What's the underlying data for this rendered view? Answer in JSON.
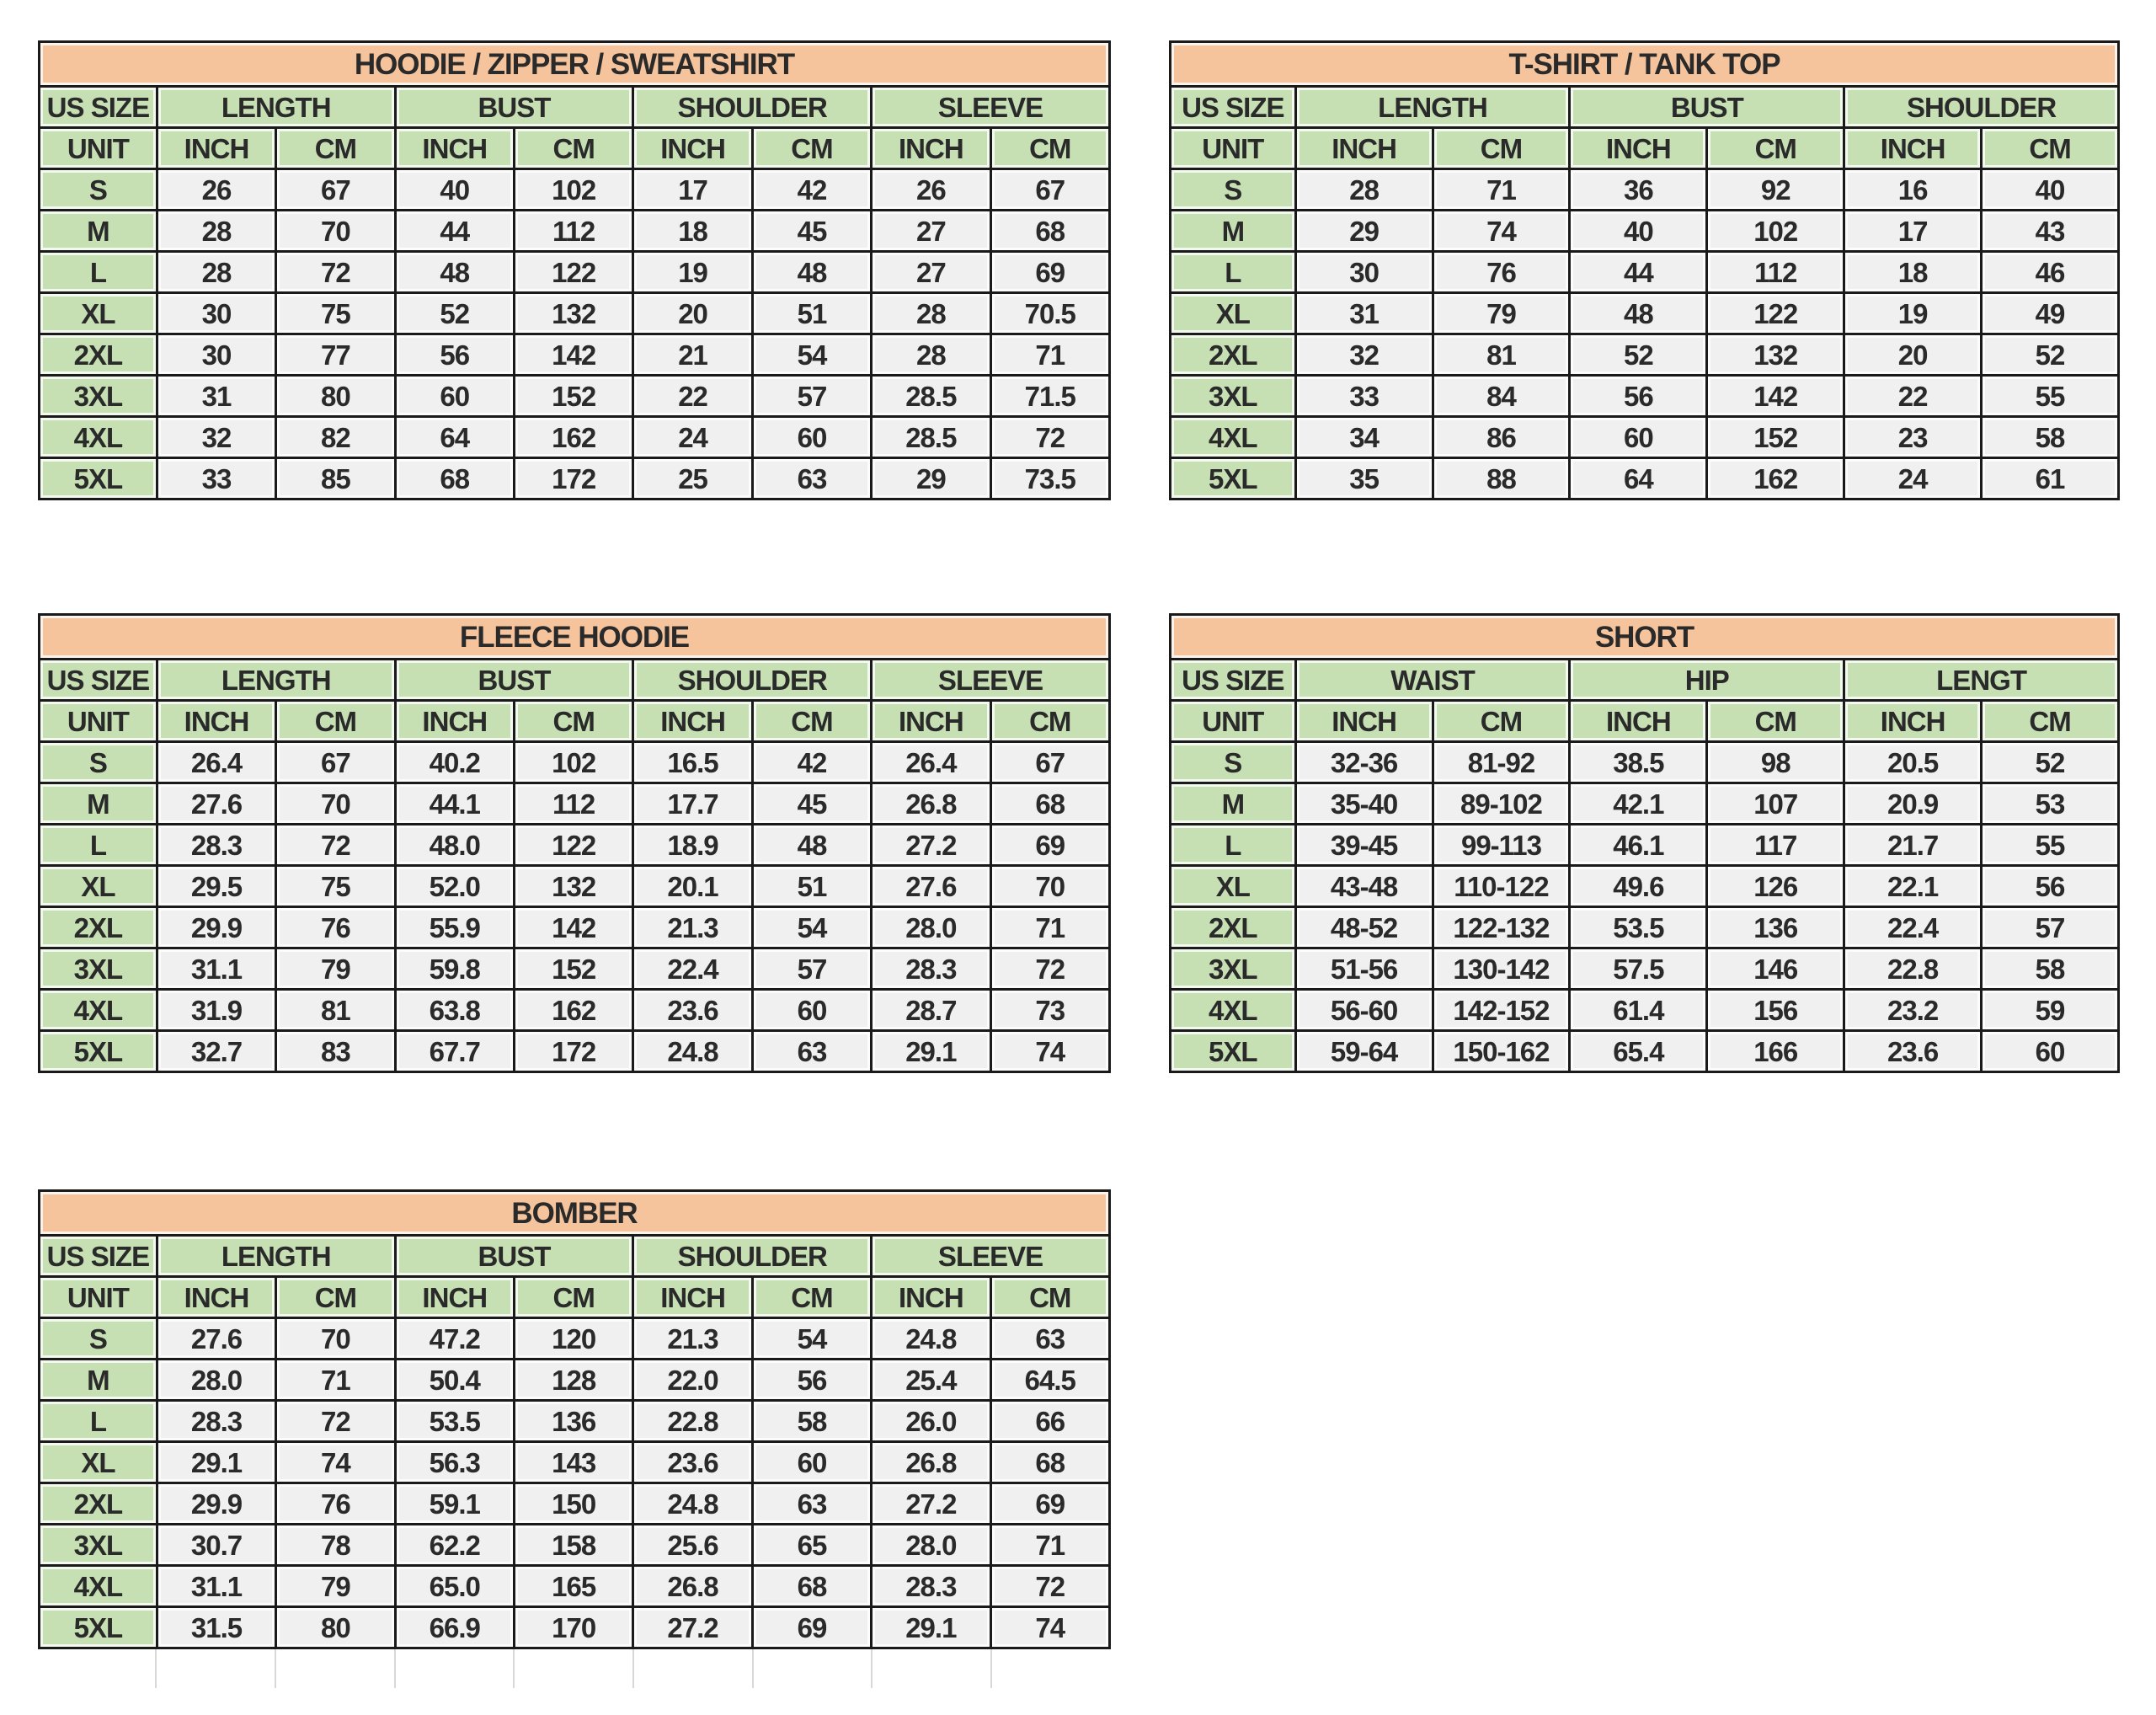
{
  "colors": {
    "title_bg": "#F5C49C",
    "header_bg": "#C6E0B4",
    "value_bg": "#F0F0F0",
    "border": "#1A1A1A",
    "text": "#2A2A2A",
    "ghost_line": "#D8D8D8"
  },
  "shared": {
    "us_size_label": "US SIZE",
    "unit_label": "UNIT",
    "inch_label": "INCH",
    "cm_label": "CM"
  },
  "tables": [
    {
      "id": "hoodie-zipper-sweatshirt",
      "title": "HOODIE / ZIPPER / SWEATSHIRT",
      "measures": [
        "LENGTH",
        "BUST",
        "SHOULDER",
        "SLEEVE"
      ],
      "rows": [
        {
          "size": "S",
          "values": [
            "26",
            "67",
            "40",
            "102",
            "17",
            "42",
            "26",
            "67"
          ]
        },
        {
          "size": "M",
          "values": [
            "28",
            "70",
            "44",
            "112",
            "18",
            "45",
            "27",
            "68"
          ]
        },
        {
          "size": "L",
          "values": [
            "28",
            "72",
            "48",
            "122",
            "19",
            "48",
            "27",
            "69"
          ]
        },
        {
          "size": "XL",
          "values": [
            "30",
            "75",
            "52",
            "132",
            "20",
            "51",
            "28",
            "70.5"
          ]
        },
        {
          "size": "2XL",
          "values": [
            "30",
            "77",
            "56",
            "142",
            "21",
            "54",
            "28",
            "71"
          ]
        },
        {
          "size": "3XL",
          "values": [
            "31",
            "80",
            "60",
            "152",
            "22",
            "57",
            "28.5",
            "71.5"
          ]
        },
        {
          "size": "4XL",
          "values": [
            "32",
            "82",
            "64",
            "162",
            "24",
            "60",
            "28.5",
            "72"
          ]
        },
        {
          "size": "5XL",
          "values": [
            "33",
            "85",
            "68",
            "172",
            "25",
            "63",
            "29",
            "73.5"
          ]
        }
      ]
    },
    {
      "id": "t-shirt-tank-top",
      "title": "T-SHIRT / TANK TOP",
      "measures": [
        "LENGTH",
        "BUST",
        "SHOULDER"
      ],
      "rows": [
        {
          "size": "S",
          "values": [
            "28",
            "71",
            "36",
            "92",
            "16",
            "40"
          ]
        },
        {
          "size": "M",
          "values": [
            "29",
            "74",
            "40",
            "102",
            "17",
            "43"
          ]
        },
        {
          "size": "L",
          "values": [
            "30",
            "76",
            "44",
            "112",
            "18",
            "46"
          ]
        },
        {
          "size": "XL",
          "values": [
            "31",
            "79",
            "48",
            "122",
            "19",
            "49"
          ]
        },
        {
          "size": "2XL",
          "values": [
            "32",
            "81",
            "52",
            "132",
            "20",
            "52"
          ]
        },
        {
          "size": "3XL",
          "values": [
            "33",
            "84",
            "56",
            "142",
            "22",
            "55"
          ]
        },
        {
          "size": "4XL",
          "values": [
            "34",
            "86",
            "60",
            "152",
            "23",
            "58"
          ]
        },
        {
          "size": "5XL",
          "values": [
            "35",
            "88",
            "64",
            "162",
            "24",
            "61"
          ]
        }
      ]
    },
    {
      "id": "fleece-hoodie",
      "title": "FLEECE HOODIE",
      "measures": [
        "LENGTH",
        "BUST",
        "SHOULDER",
        "SLEEVE"
      ],
      "rows": [
        {
          "size": "S",
          "values": [
            "26.4",
            "67",
            "40.2",
            "102",
            "16.5",
            "42",
            "26.4",
            "67"
          ]
        },
        {
          "size": "M",
          "values": [
            "27.6",
            "70",
            "44.1",
            "112",
            "17.7",
            "45",
            "26.8",
            "68"
          ]
        },
        {
          "size": "L",
          "values": [
            "28.3",
            "72",
            "48.0",
            "122",
            "18.9",
            "48",
            "27.2",
            "69"
          ]
        },
        {
          "size": "XL",
          "values": [
            "29.5",
            "75",
            "52.0",
            "132",
            "20.1",
            "51",
            "27.6",
            "70"
          ]
        },
        {
          "size": "2XL",
          "values": [
            "29.9",
            "76",
            "55.9",
            "142",
            "21.3",
            "54",
            "28.0",
            "71"
          ]
        },
        {
          "size": "3XL",
          "values": [
            "31.1",
            "79",
            "59.8",
            "152",
            "22.4",
            "57",
            "28.3",
            "72"
          ]
        },
        {
          "size": "4XL",
          "values": [
            "31.9",
            "81",
            "63.8",
            "162",
            "23.6",
            "60",
            "28.7",
            "73"
          ]
        },
        {
          "size": "5XL",
          "values": [
            "32.7",
            "83",
            "67.7",
            "172",
            "24.8",
            "63",
            "29.1",
            "74"
          ]
        }
      ]
    },
    {
      "id": "short",
      "title": "SHORT",
      "measures": [
        "WAIST",
        "HIP",
        "LENGT"
      ],
      "rows": [
        {
          "size": "S",
          "values": [
            "32-36",
            "81-92",
            "38.5",
            "98",
            "20.5",
            "52"
          ]
        },
        {
          "size": "M",
          "values": [
            "35-40",
            "89-102",
            "42.1",
            "107",
            "20.9",
            "53"
          ]
        },
        {
          "size": "L",
          "values": [
            "39-45",
            "99-113",
            "46.1",
            "117",
            "21.7",
            "55"
          ]
        },
        {
          "size": "XL",
          "values": [
            "43-48",
            "110-122",
            "49.6",
            "126",
            "22.1",
            "56"
          ]
        },
        {
          "size": "2XL",
          "values": [
            "48-52",
            "122-132",
            "53.5",
            "136",
            "22.4",
            "57"
          ]
        },
        {
          "size": "3XL",
          "values": [
            "51-56",
            "130-142",
            "57.5",
            "146",
            "22.8",
            "58"
          ]
        },
        {
          "size": "4XL",
          "values": [
            "56-60",
            "142-152",
            "61.4",
            "156",
            "23.2",
            "59"
          ]
        },
        {
          "size": "5XL",
          "values": [
            "59-64",
            "150-162",
            "65.4",
            "166",
            "23.6",
            "60"
          ]
        }
      ]
    },
    {
      "id": "bomber",
      "title": "BOMBER",
      "measures": [
        "LENGTH",
        "BUST",
        "SHOULDER",
        "SLEEVE"
      ],
      "has_partial_empty_row_below": true,
      "rows": [
        {
          "size": "S",
          "values": [
            "27.6",
            "70",
            "47.2",
            "120",
            "21.3",
            "54",
            "24.8",
            "63"
          ]
        },
        {
          "size": "M",
          "values": [
            "28.0",
            "71",
            "50.4",
            "128",
            "22.0",
            "56",
            "25.4",
            "64.5"
          ]
        },
        {
          "size": "L",
          "values": [
            "28.3",
            "72",
            "53.5",
            "136",
            "22.8",
            "58",
            "26.0",
            "66"
          ]
        },
        {
          "size": "XL",
          "values": [
            "29.1",
            "74",
            "56.3",
            "143",
            "23.6",
            "60",
            "26.8",
            "68"
          ]
        },
        {
          "size": "2XL",
          "values": [
            "29.9",
            "76",
            "59.1",
            "150",
            "24.8",
            "63",
            "27.2",
            "69"
          ]
        },
        {
          "size": "3XL",
          "values": [
            "30.7",
            "78",
            "62.2",
            "158",
            "25.6",
            "65",
            "28.0",
            "71"
          ]
        },
        {
          "size": "4XL",
          "values": [
            "31.1",
            "79",
            "65.0",
            "165",
            "26.8",
            "68",
            "28.3",
            "72"
          ]
        },
        {
          "size": "5XL",
          "values": [
            "31.5",
            "80",
            "66.9",
            "170",
            "27.2",
            "69",
            "29.1",
            "74"
          ]
        }
      ]
    }
  ]
}
